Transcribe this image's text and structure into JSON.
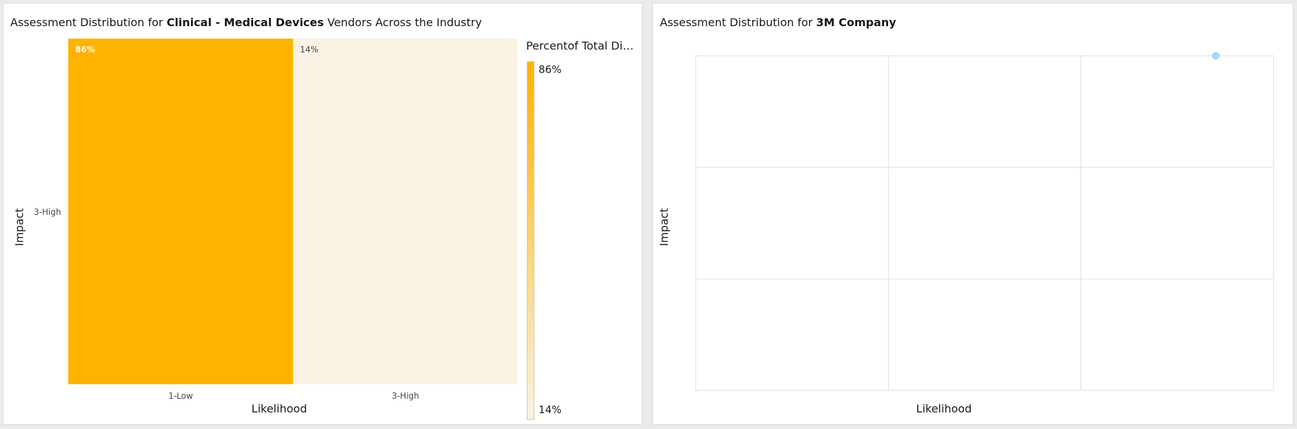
{
  "left_panel": {
    "title_prefix": "Assessment Distribution for ",
    "title_bold": "Clinical - Medical Devices",
    "title_suffix": " Vendors Across the Industry",
    "legend_title": "Percentof Total Dis…",
    "legend_max_label": "86%",
    "legend_min_label": "14%"
  },
  "right_panel": {
    "title_prefix": "Assessment Distribution for ",
    "title_bold": "3M Company"
  },
  "colors": {
    "high": "#ffb300",
    "low": "#faf2e2",
    "dot": "#9fdcef",
    "grid": "#dcdcdc"
  },
  "chart_data": [
    {
      "type": "heatmap",
      "title": "Assessment Distribution for Clinical - Medical Devices Vendors Across the Industry",
      "xlabel": "Likelihood",
      "ylabel": "Impact",
      "x_categories": [
        "1-Low",
        "3-High"
      ],
      "y_categories": [
        "3-High"
      ],
      "cells": [
        {
          "x": "1-Low",
          "y": "3-High",
          "value": 86,
          "label": "86%"
        },
        {
          "x": "3-High",
          "y": "3-High",
          "value": 14,
          "label": "14%"
        }
      ],
      "color_scale": {
        "min": 14,
        "max": 86,
        "min_color": "#faf2e2",
        "max_color": "#ffb300"
      },
      "legend": {
        "title": "Percentof Total Dis…",
        "position": "right"
      }
    },
    {
      "type": "scatter",
      "title": "Assessment Distribution for 3M Company",
      "xlabel": "Likelihood",
      "ylabel": "Impact",
      "xlim": [
        0,
        3
      ],
      "ylim": [
        0,
        3
      ],
      "grid": true,
      "points": [
        {
          "x": 2.7,
          "y": 3.0
        }
      ]
    }
  ]
}
